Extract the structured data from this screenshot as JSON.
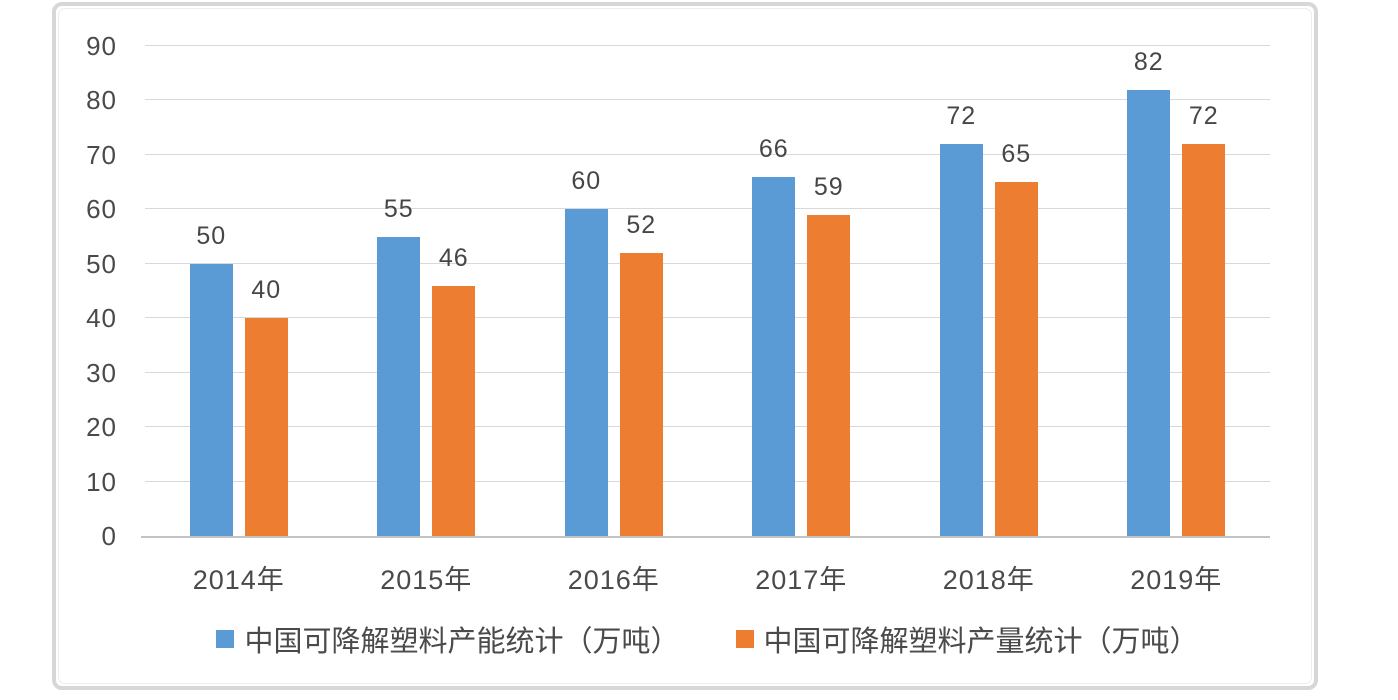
{
  "chart_data": {
    "type": "bar",
    "title": "",
    "categories": [
      "2014年",
      "2015年",
      "2016年",
      "2017年",
      "2018年",
      "2019年"
    ],
    "series": [
      {
        "key": "capacity",
        "name": "中国可降解塑料产能统计（万吨）",
        "color": "#5b9bd5",
        "values": [
          50,
          55,
          60,
          66,
          72,
          82
        ]
      },
      {
        "key": "output",
        "name": "中国可降解塑料产量统计（万吨）",
        "color": "#ed7d31",
        "values": [
          40,
          46,
          52,
          59,
          65,
          72
        ]
      }
    ],
    "yticks": [
      0,
      10,
      20,
      30,
      40,
      50,
      60,
      70,
      80,
      90
    ],
    "ylim": [
      0,
      90
    ],
    "grid": true,
    "data_labels": true,
    "legend_position": "bottom"
  },
  "colors": {
    "background": "#ffffff",
    "frame_border": "#d7d7d7",
    "frame_inner_border": "#ededed",
    "gridline": "#d9d9d9",
    "axis_line": "#c3c3c3",
    "tick_text": "#4a4a4a",
    "data_label_text": "#464646",
    "series_blue": "#5b9bd5",
    "series_orange": "#ed7d31"
  }
}
